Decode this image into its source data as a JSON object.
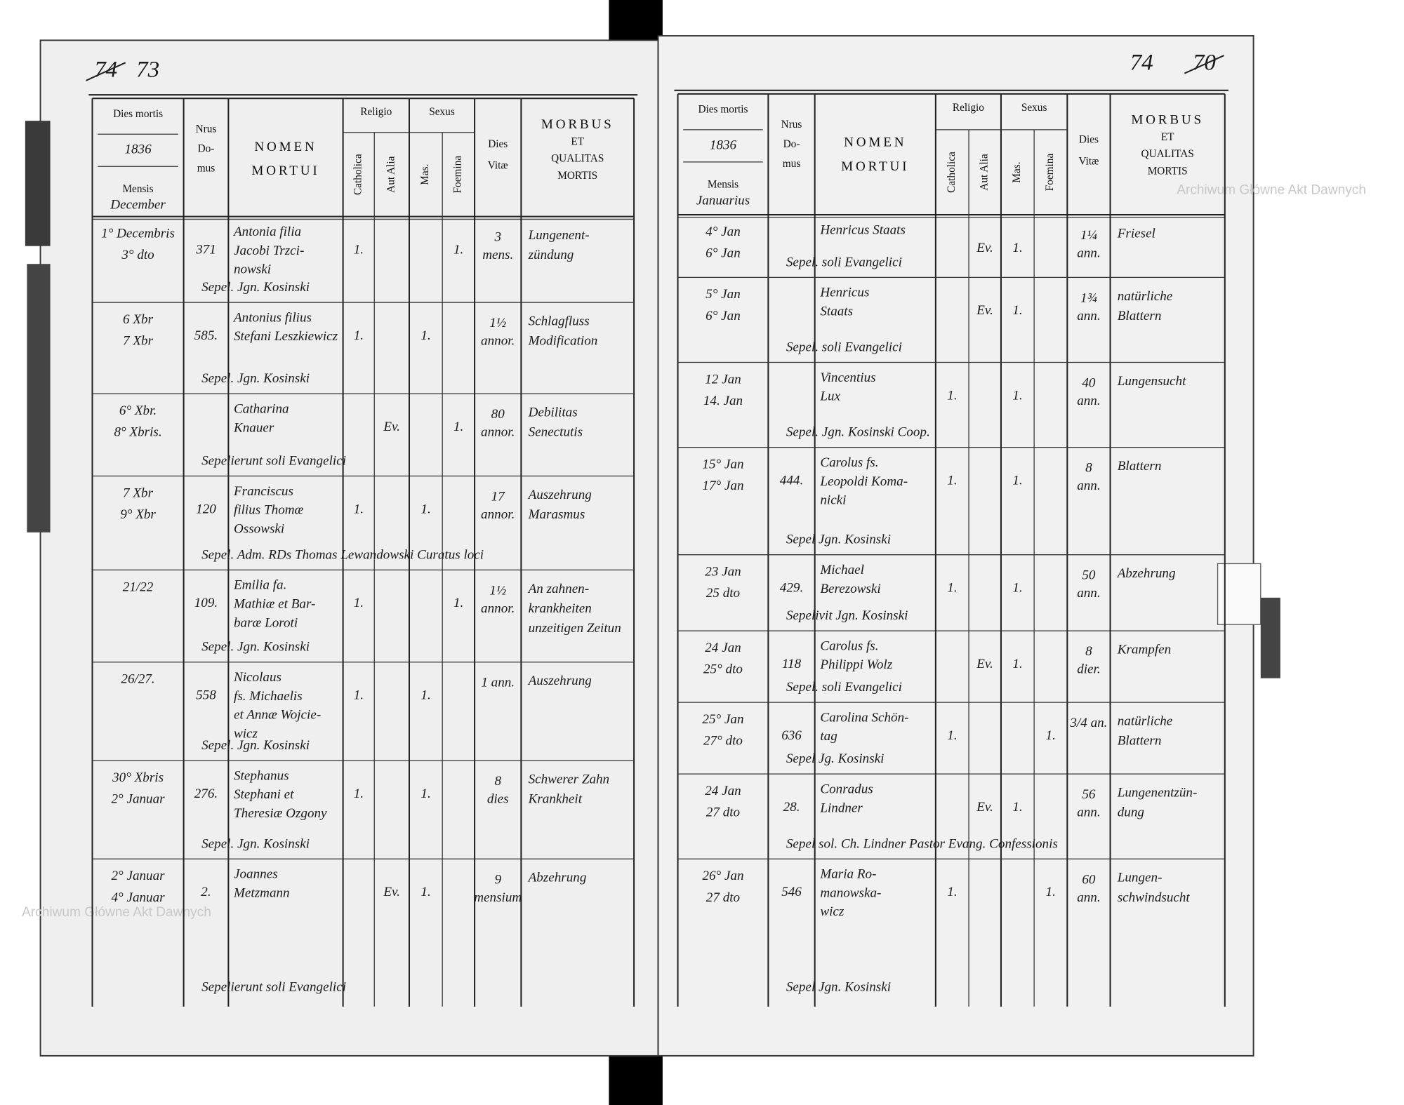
{
  "pages": [
    {
      "folio": "73",
      "struck_folio": "74",
      "header": {
        "dies_mortis": "Dies mortis",
        "year": "1836",
        "mensis": "Mensis",
        "month": "December",
        "nrus": [
          "Nrus",
          "Do-",
          "mus"
        ],
        "nomen": [
          "NOMEN",
          "MORTUI"
        ],
        "religio": "Religio",
        "catholica": "Catholica",
        "aut_alia": "Aut Alia",
        "sexus": "Sexus",
        "mas": "Mas.",
        "foemina": "Foemina",
        "dies_vitae": [
          "Dies",
          "Vitæ"
        ],
        "morbus": [
          "MORBUS",
          "ET",
          "QUALITAS",
          "MORTIS"
        ]
      },
      "entries": [
        {
          "dates": [
            "1° Decembris",
            "3° dto"
          ],
          "domus": "371",
          "nomen": [
            "Antonia filia",
            "Jacobi Trzci-",
            "nowski"
          ],
          "cath": "1.",
          "foem": "1.",
          "vitae": [
            "3",
            "mens."
          ],
          "morbus": [
            "Lungenent-",
            "zündung"
          ],
          "sepel": "Sepel. Jgn. Kosinski"
        },
        {
          "dates": [
            "6 Xbr",
            "7 Xbr"
          ],
          "domus": "585.",
          "nomen": [
            "Antonius filius",
            "Stefani Leszkiewicz"
          ],
          "cath": "1.",
          "mas": "1.",
          "vitae": [
            "1½",
            "annor."
          ],
          "morbus": [
            "Schlagfluss",
            "Modification"
          ],
          "sepel": "Sepel. Jgn. Kosinski"
        },
        {
          "dates": [
            "6° Xbr.",
            "8° Xbris."
          ],
          "nomen": [
            "Catharina",
            "Knauer"
          ],
          "alia": "Ev.",
          "foem": "1.",
          "vitae": [
            "80",
            "annor."
          ],
          "morbus": [
            "Debilitas",
            "Senectutis"
          ],
          "sepel": "Sepelierunt soli Evangelici"
        },
        {
          "dates": [
            "7 Xbr",
            "9° Xbr"
          ],
          "domus": "120",
          "nomen": [
            "Franciscus",
            "filius Thomæ",
            "Ossowski"
          ],
          "cath": "1.",
          "mas": "1.",
          "vitae": [
            "17",
            "annor."
          ],
          "morbus": [
            "Auszehrung",
            "Marasmus"
          ],
          "sepel": "Sepel. Adm. RDs Thomas Lewandowski Curatus loci"
        },
        {
          "dates": [
            "21/22"
          ],
          "domus": "109.",
          "nomen": [
            "Emilia fa.",
            "Mathiæ et Bar-",
            "baræ Loroti"
          ],
          "cath": "1.",
          "foem": "1.",
          "vitae": [
            "1½",
            "annor."
          ],
          "morbus": [
            "An zahnen-",
            "krankheiten",
            "unzeitigen Zeitun"
          ],
          "sepel": "Sepel. Jgn. Kosinski"
        },
        {
          "dates": [
            "26/27."
          ],
          "domus": "558",
          "nomen": [
            "Nicolaus",
            "fs. Michaelis",
            "et Annæ Wojcie-",
            "wicz"
          ],
          "cath": "1.",
          "mas": "1.",
          "vitae": [
            "1 ann."
          ],
          "morbus": [
            "Auszehrung"
          ],
          "sepel": "Sepel. Jgn. Kosinski"
        },
        {
          "dates": [
            "30° Xbris",
            "2° Januar"
          ],
          "domus": "276.",
          "nomen": [
            "Stephanus",
            "Stephani et",
            "Theresiæ Ozgony"
          ],
          "cath": "1.",
          "mas": "1.",
          "vitae": [
            "8",
            "dies"
          ],
          "morbus": [
            "Schwerer Zahn",
            "Krankheit"
          ],
          "sepel": "Sepel. Jgn. Kosinski"
        },
        {
          "dates": [
            "2° Januar",
            "4° Januar"
          ],
          "domus": "2.",
          "nomen": [
            "Joannes",
            "Metzmann"
          ],
          "alia": "Ev.",
          "mas": "1.",
          "vitae": [
            "9",
            "mensium"
          ],
          "morbus": [
            "Abzehrung"
          ],
          "sepel": "Sepelierunt soli Evangelici"
        }
      ]
    },
    {
      "folio": "74",
      "struck_folio": "70",
      "header": {
        "dies_mortis": "Dies mortis",
        "year": "1836",
        "mensis": "Mensis",
        "month": "Januarius",
        "nrus": [
          "Nrus",
          "Do-",
          "mus"
        ],
        "nomen": [
          "NOMEN",
          "MORTUI"
        ],
        "religio": "Religio",
        "catholica": "Catholica",
        "aut_alia": "Aut Alia",
        "sexus": "Sexus",
        "mas": "Mas.",
        "foemina": "Foemina",
        "dies_vitae": [
          "Dies",
          "Vitæ"
        ],
        "morbus": [
          "MORBUS",
          "ET",
          "QUALITAS",
          "MORTIS"
        ]
      },
      "entries": [
        {
          "dates": [
            "4° Jan",
            "6° Jan"
          ],
          "nomen": [
            "Henricus Staats"
          ],
          "alia": "Ev.",
          "mas": "1.",
          "vitae": [
            "1¼",
            "ann."
          ],
          "morbus": [
            "Friesel"
          ],
          "sepel": "Sepel. soli Evangelici"
        },
        {
          "dates": [
            "5° Jan",
            "6° Jan"
          ],
          "nomen": [
            "Henricus",
            "Staats"
          ],
          "alia": "Ev.",
          "mas": "1.",
          "vitae": [
            "1¾",
            "ann."
          ],
          "morbus": [
            "natürliche",
            "Blattern"
          ],
          "sepel": "Sepel. soli Evangelici"
        },
        {
          "dates": [
            "12 Jan",
            "14. Jan"
          ],
          "nomen": [
            "Vincentius",
            "Lux"
          ],
          "cath": "1.",
          "mas": "1.",
          "vitae": [
            "40",
            "ann."
          ],
          "morbus": [
            "Lungensucht"
          ],
          "sepel": "Sepel. Jgn. Kosinski Coop."
        },
        {
          "dates": [
            "15° Jan",
            "17° Jan"
          ],
          "domus": "444.",
          "nomen": [
            "Carolus fs.",
            "Leopoldi Koma-",
            "nicki"
          ],
          "cath": "1.",
          "mas": "1.",
          "vitae": [
            "8",
            "ann."
          ],
          "morbus": [
            "Blattern"
          ],
          "sepel": "Sepel Jgn. Kosinski"
        },
        {
          "dates": [
            "23 Jan",
            "25 dto"
          ],
          "domus": "429.",
          "nomen": [
            "Michael",
            "Berezowski"
          ],
          "cath": "1.",
          "mas": "1.",
          "vitae": [
            "50",
            "ann."
          ],
          "morbus": [
            "Abzehrung"
          ],
          "sepel": "Sepelivit Jgn. Kosinski"
        },
        {
          "dates": [
            "24 Jan",
            "25° dto"
          ],
          "domus": "118",
          "nomen": [
            "Carolus fs.",
            "Philippi Wolz"
          ],
          "alia": "Ev.",
          "mas": "1.",
          "vitae": [
            "8",
            "dier."
          ],
          "morbus": [
            "Krampfen"
          ],
          "sepel": "Sepel. soli Evangelici"
        },
        {
          "dates": [
            "25° Jan",
            "27° dto"
          ],
          "domus": "636",
          "nomen": [
            "Carolina Schön-",
            "tag"
          ],
          "cath": "1.",
          "foem": "1.",
          "vitae": [
            "3/4 an."
          ],
          "morbus": [
            "natürliche",
            "Blattern"
          ],
          "sepel": "Sepel Jg. Kosinski"
        },
        {
          "dates": [
            "24 Jan",
            "27 dto"
          ],
          "domus": "28.",
          "nomen": [
            "Conradus",
            "Lindner"
          ],
          "alia": "Ev.",
          "mas": "1.",
          "vitae": [
            "56",
            "ann."
          ],
          "morbus": [
            "Lungenentzün-",
            "dung"
          ],
          "sepel": "Sepel sol. Ch. Lindner Pastor Evang. Confessionis"
        },
        {
          "dates": [
            "26° Jan",
            "27 dto"
          ],
          "domus": "546",
          "nomen": [
            "Maria Ro-",
            "manowska-",
            "wicz"
          ],
          "cath": "1.",
          "foem": "1.",
          "vitae": [
            "60",
            "ann."
          ],
          "morbus": [
            "Lungen-",
            "schwindsucht"
          ],
          "sepel": "Sepel Jgn. Kosinski"
        }
      ]
    }
  ],
  "watermarks": [
    "Archiwum Główne Akt Dawnych",
    "Archiwum Główne Akt Dawnych"
  ]
}
